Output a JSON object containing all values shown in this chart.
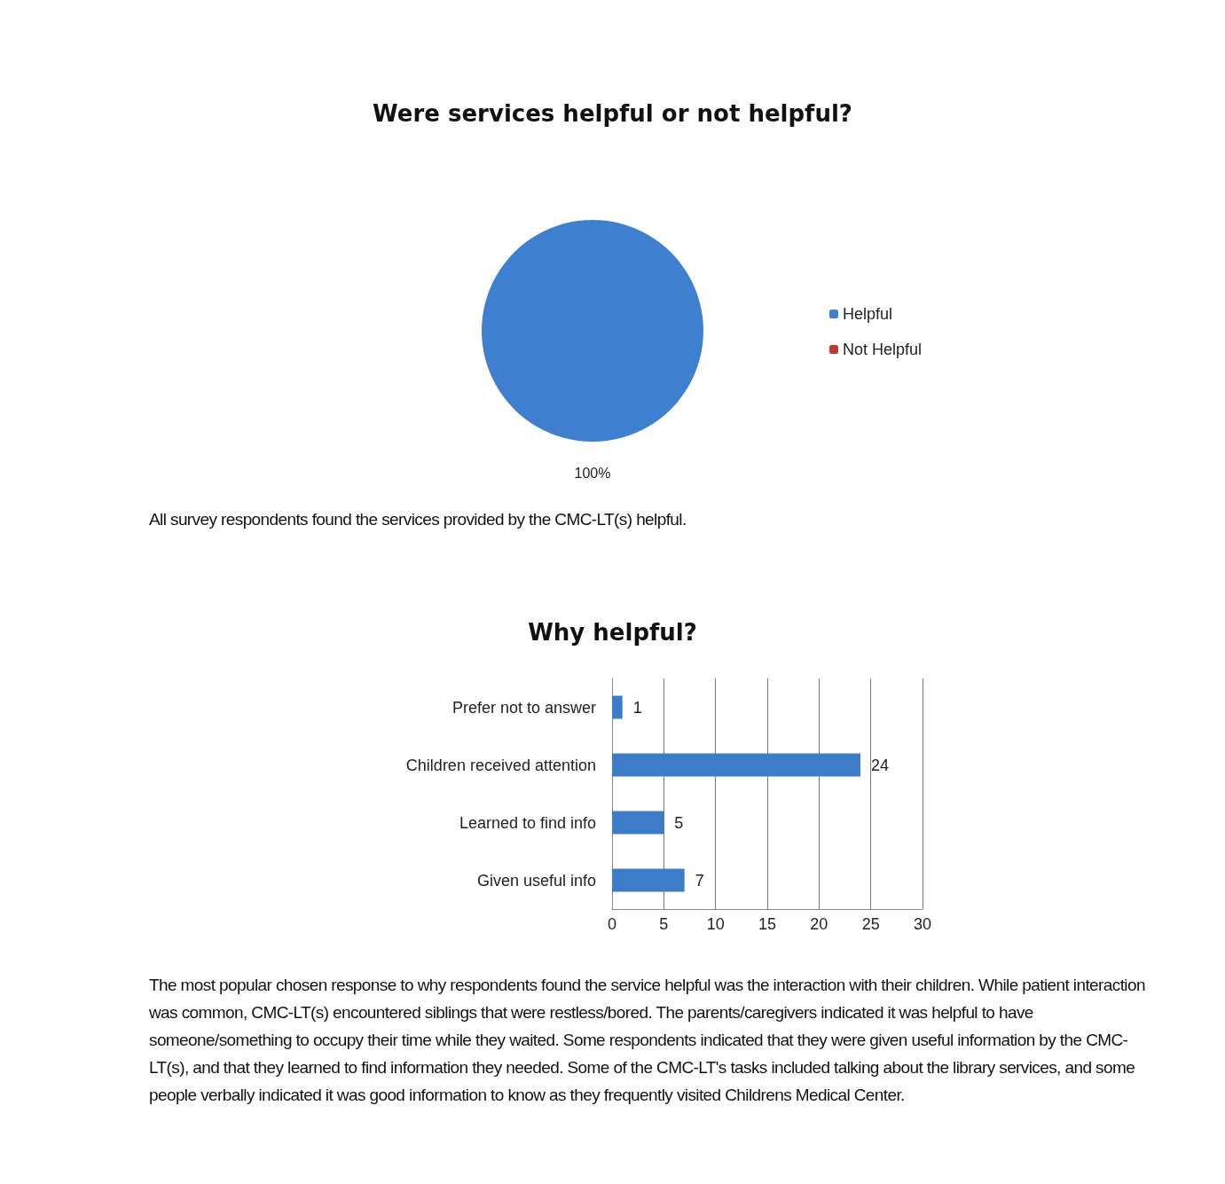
{
  "chart_data": [
    {
      "type": "pie",
      "title": "Were services helpful or not helpful?",
      "categories": [
        "Helpful",
        "Not Helpful"
      ],
      "values": [
        100,
        0
      ],
      "colors": [
        "#3f7fcf",
        "#c0392b"
      ],
      "value_labels": [
        "100%",
        null
      ],
      "legend": "right",
      "annotations": [
        "All survey respondents found the services provided by the CMC-LT(s) helpful."
      ]
    },
    {
      "type": "bar",
      "orientation": "horizontal",
      "title": "Why helpful?",
      "categories": [
        "Prefer not to answer",
        "Children received attention",
        "Learned to find info",
        "Given useful info"
      ],
      "values": [
        1,
        24,
        5,
        7
      ],
      "color": "#3d7cc9",
      "xlim": [
        0,
        30
      ],
      "xticks": [
        0,
        5,
        10,
        15,
        20,
        25,
        30
      ],
      "grid": "x",
      "data_labels": true,
      "annotations": [
        "The most popular chosen response to why respondents found the service helpful was the interaction with their children. While patient interaction was common, CMC-LT(s) encountered siblings that were restless/bored. The parents/caregivers indicated it was helpful to have someone/something to occupy their time while they waited. Some respondents indicated that they were given useful information by the CMC-LT(s), and that they learned to find information they needed. Some of the CMC-LT's tasks included talking about the library services, and some people verbally indicated it was good information to know as they frequently visited Childrens Medical Center."
      ]
    }
  ]
}
